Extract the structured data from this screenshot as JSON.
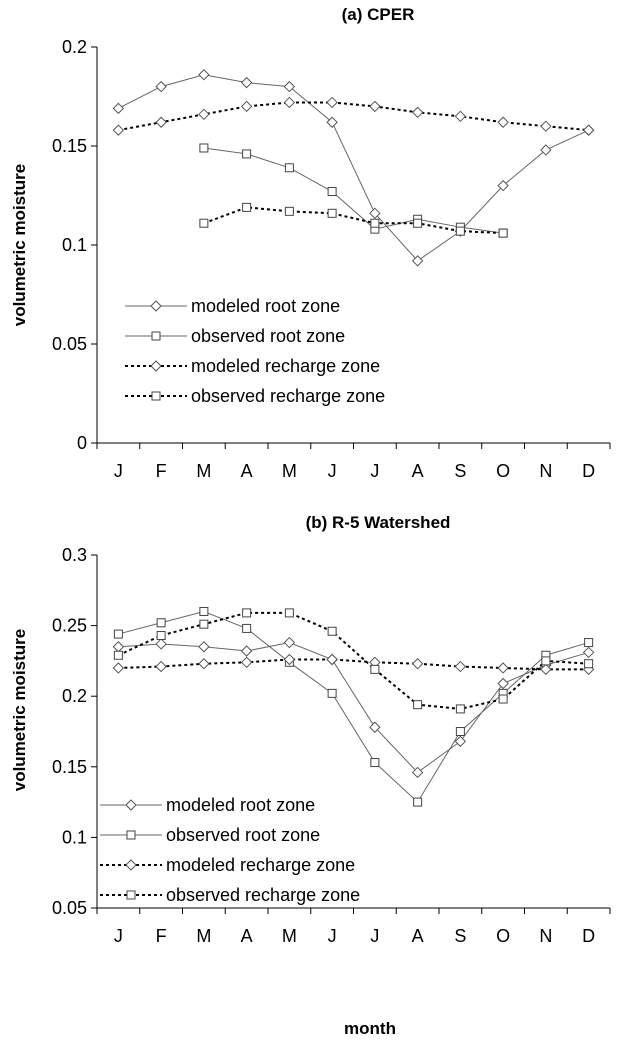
{
  "chart_data": [
    {
      "type": "line",
      "title": "(a) CPER",
      "ylabel": "volumetric moisture",
      "xlabel": "",
      "categories": [
        "J",
        "F",
        "M",
        "A",
        "M",
        "J",
        "J",
        "A",
        "S",
        "O",
        "N",
        "D"
      ],
      "ylim": [
        0,
        0.2
      ],
      "yticks": [
        0,
        0.05,
        0.1,
        0.15,
        0.2
      ],
      "ytick_labels": [
        "0",
        "0.05",
        "0.1",
        "0.15",
        "0.2"
      ],
      "grid": false,
      "legend_position": "lower-left",
      "series": [
        {
          "name": "modeled root zone",
          "style": "solid",
          "marker": "diamond",
          "values": [
            0.169,
            0.18,
            0.186,
            0.182,
            0.18,
            0.162,
            0.116,
            0.092,
            0.107,
            0.13,
            0.148,
            0.158
          ]
        },
        {
          "name": "observed root zone",
          "style": "solid",
          "marker": "square",
          "values": [
            null,
            null,
            0.149,
            0.146,
            0.139,
            0.127,
            0.108,
            0.113,
            0.109,
            0.106,
            null,
            null
          ]
        },
        {
          "name": "modeled recharge zone",
          "style": "dotted",
          "marker": "diamond",
          "values": [
            0.158,
            0.162,
            0.166,
            0.17,
            0.172,
            0.172,
            0.17,
            0.167,
            0.165,
            0.162,
            0.16,
            0.158
          ]
        },
        {
          "name": "observed recharge zone",
          "style": "dotted",
          "marker": "square",
          "values": [
            null,
            null,
            0.111,
            0.119,
            0.117,
            0.116,
            0.111,
            0.111,
            0.107,
            0.106,
            null,
            null
          ]
        }
      ]
    },
    {
      "type": "line",
      "title": "(b) R-5 Watershed",
      "ylabel": "volumetric moisture",
      "xlabel": "month",
      "categories": [
        "J",
        "F",
        "M",
        "A",
        "M",
        "J",
        "J",
        "A",
        "S",
        "O",
        "N",
        "D"
      ],
      "ylim": [
        0.05,
        0.3
      ],
      "yticks": [
        0.05,
        0.1,
        0.15,
        0.2,
        0.25,
        0.3
      ],
      "ytick_labels": [
        "0.05",
        "0.1",
        "0.15",
        "0.2",
        "0.25",
        "0.3"
      ],
      "grid": false,
      "legend_position": "lower-left",
      "series": [
        {
          "name": "modeled root zone",
          "style": "solid",
          "marker": "diamond",
          "values": [
            0.235,
            0.237,
            0.235,
            0.232,
            0.238,
            0.226,
            0.178,
            0.146,
            0.168,
            0.209,
            0.222,
            0.231
          ]
        },
        {
          "name": "observed root zone",
          "style": "solid",
          "marker": "square",
          "values": [
            0.244,
            0.252,
            0.26,
            0.248,
            0.224,
            0.202,
            0.153,
            0.125,
            0.175,
            0.202,
            0.229,
            0.238
          ]
        },
        {
          "name": "modeled recharge zone",
          "style": "dotted",
          "marker": "diamond",
          "values": [
            0.22,
            0.221,
            0.223,
            0.224,
            0.226,
            0.226,
            0.224,
            0.223,
            0.221,
            0.22,
            0.219,
            0.219
          ]
        },
        {
          "name": "observed recharge zone",
          "style": "dotted",
          "marker": "square",
          "values": [
            0.229,
            0.243,
            0.251,
            0.259,
            0.259,
            0.246,
            0.219,
            0.194,
            0.191,
            0.198,
            0.225,
            0.223
          ]
        }
      ]
    }
  ]
}
